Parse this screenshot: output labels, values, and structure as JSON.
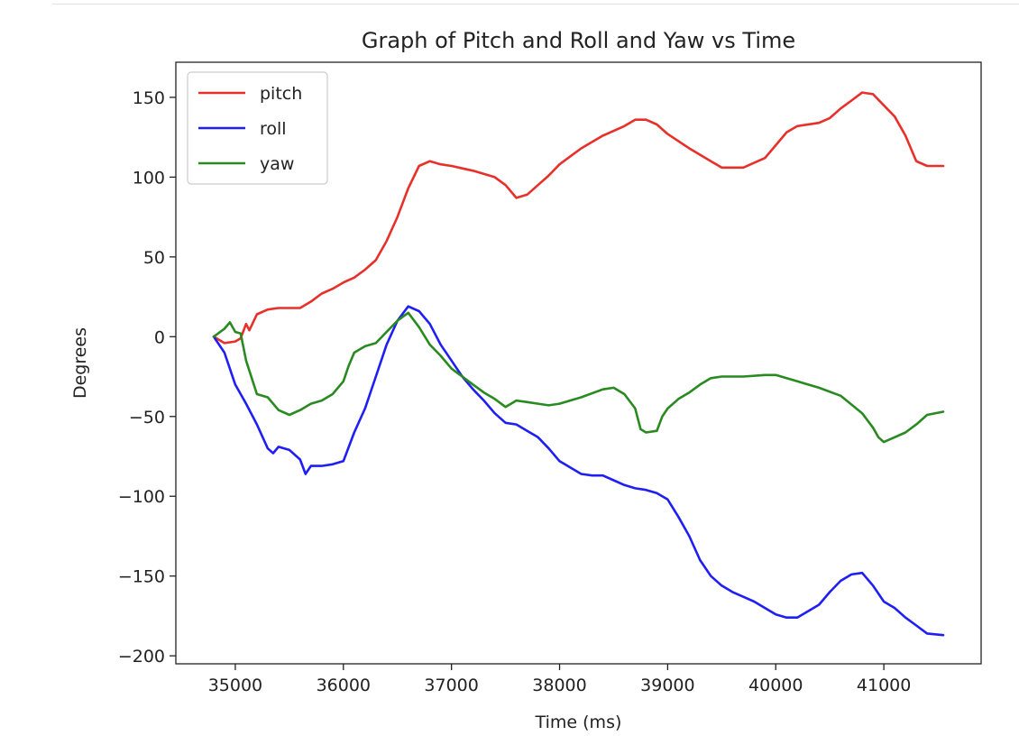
{
  "chart_data": {
    "type": "line",
    "title": "Graph of Pitch and Roll and Yaw vs Time",
    "xlabel": "Time (ms)",
    "ylabel": "Degrees",
    "xlim": [
      34450,
      41900
    ],
    "ylim": [
      -205,
      172
    ],
    "xticks": [
      35000,
      36000,
      37000,
      38000,
      39000,
      40000,
      41000
    ],
    "yticks": [
      -200,
      -150,
      -100,
      -50,
      0,
      50,
      100,
      150
    ],
    "grid": false,
    "legend_position": "upper-left",
    "series": [
      {
        "name": "pitch",
        "color": "#e8302a",
        "points": [
          [
            34800,
            0
          ],
          [
            34900,
            -4
          ],
          [
            35000,
            -3
          ],
          [
            35050,
            -1
          ],
          [
            35100,
            8
          ],
          [
            35130,
            4
          ],
          [
            35200,
            14
          ],
          [
            35300,
            17
          ],
          [
            35400,
            18
          ],
          [
            35500,
            18
          ],
          [
            35600,
            18
          ],
          [
            35700,
            22
          ],
          [
            35800,
            27
          ],
          [
            35900,
            30
          ],
          [
            36000,
            34
          ],
          [
            36100,
            37
          ],
          [
            36200,
            42
          ],
          [
            36300,
            48
          ],
          [
            36400,
            60
          ],
          [
            36500,
            75
          ],
          [
            36600,
            93
          ],
          [
            36700,
            107
          ],
          [
            36800,
            110
          ],
          [
            36900,
            108
          ],
          [
            37000,
            107
          ],
          [
            37200,
            104
          ],
          [
            37400,
            100
          ],
          [
            37500,
            95
          ],
          [
            37600,
            87
          ],
          [
            37700,
            89
          ],
          [
            37800,
            95
          ],
          [
            37900,
            101
          ],
          [
            38000,
            108
          ],
          [
            38200,
            118
          ],
          [
            38400,
            126
          ],
          [
            38600,
            132
          ],
          [
            38700,
            136
          ],
          [
            38800,
            136
          ],
          [
            38900,
            133
          ],
          [
            39000,
            127
          ],
          [
            39200,
            118
          ],
          [
            39400,
            110
          ],
          [
            39500,
            106
          ],
          [
            39700,
            106
          ],
          [
            39900,
            112
          ],
          [
            40000,
            120
          ],
          [
            40100,
            128
          ],
          [
            40200,
            132
          ],
          [
            40400,
            134
          ],
          [
            40500,
            137
          ],
          [
            40600,
            143
          ],
          [
            40700,
            148
          ],
          [
            40800,
            153
          ],
          [
            40900,
            152
          ],
          [
            41000,
            145
          ],
          [
            41100,
            138
          ],
          [
            41200,
            126
          ],
          [
            41300,
            110
          ],
          [
            41400,
            107
          ],
          [
            41550,
            107
          ]
        ]
      },
      {
        "name": "roll",
        "color": "#1f1ff5",
        "points": [
          [
            34800,
            0
          ],
          [
            34900,
            -10
          ],
          [
            35000,
            -30
          ],
          [
            35100,
            -42
          ],
          [
            35200,
            -55
          ],
          [
            35300,
            -70
          ],
          [
            35350,
            -73
          ],
          [
            35400,
            -69
          ],
          [
            35500,
            -71
          ],
          [
            35600,
            -77
          ],
          [
            35650,
            -86
          ],
          [
            35700,
            -81
          ],
          [
            35800,
            -81
          ],
          [
            35900,
            -80
          ],
          [
            36000,
            -78
          ],
          [
            36100,
            -60
          ],
          [
            36200,
            -45
          ],
          [
            36300,
            -25
          ],
          [
            36400,
            -5
          ],
          [
            36500,
            10
          ],
          [
            36600,
            19
          ],
          [
            36700,
            16
          ],
          [
            36800,
            8
          ],
          [
            36900,
            -5
          ],
          [
            37000,
            -15
          ],
          [
            37100,
            -25
          ],
          [
            37200,
            -33
          ],
          [
            37300,
            -40
          ],
          [
            37400,
            -48
          ],
          [
            37500,
            -54
          ],
          [
            37600,
            -55
          ],
          [
            37700,
            -59
          ],
          [
            37800,
            -63
          ],
          [
            37900,
            -70
          ],
          [
            38000,
            -78
          ],
          [
            38100,
            -82
          ],
          [
            38200,
            -86
          ],
          [
            38300,
            -87
          ],
          [
            38400,
            -87
          ],
          [
            38500,
            -90
          ],
          [
            38600,
            -93
          ],
          [
            38700,
            -95
          ],
          [
            38800,
            -96
          ],
          [
            38900,
            -98
          ],
          [
            39000,
            -102
          ],
          [
            39100,
            -113
          ],
          [
            39200,
            -125
          ],
          [
            39300,
            -140
          ],
          [
            39400,
            -150
          ],
          [
            39500,
            -156
          ],
          [
            39600,
            -160
          ],
          [
            39700,
            -163
          ],
          [
            39800,
            -166
          ],
          [
            39900,
            -170
          ],
          [
            40000,
            -174
          ],
          [
            40100,
            -176
          ],
          [
            40200,
            -176
          ],
          [
            40300,
            -172
          ],
          [
            40400,
            -168
          ],
          [
            40500,
            -160
          ],
          [
            40600,
            -153
          ],
          [
            40700,
            -149
          ],
          [
            40800,
            -148
          ],
          [
            40900,
            -156
          ],
          [
            41000,
            -166
          ],
          [
            41100,
            -170
          ],
          [
            41200,
            -176
          ],
          [
            41300,
            -181
          ],
          [
            41400,
            -186
          ],
          [
            41550,
            -187
          ]
        ]
      },
      {
        "name": "yaw",
        "color": "#2a8a22",
        "points": [
          [
            34800,
            0
          ],
          [
            34900,
            5
          ],
          [
            34950,
            9
          ],
          [
            35000,
            3
          ],
          [
            35050,
            2
          ],
          [
            35100,
            -15
          ],
          [
            35200,
            -36
          ],
          [
            35300,
            -38
          ],
          [
            35400,
            -46
          ],
          [
            35500,
            -49
          ],
          [
            35600,
            -46
          ],
          [
            35700,
            -42
          ],
          [
            35800,
            -40
          ],
          [
            35900,
            -36
          ],
          [
            36000,
            -28
          ],
          [
            36050,
            -18
          ],
          [
            36100,
            -10
          ],
          [
            36200,
            -6
          ],
          [
            36300,
            -4
          ],
          [
            36400,
            3
          ],
          [
            36500,
            10
          ],
          [
            36600,
            15
          ],
          [
            36700,
            6
          ],
          [
            36800,
            -5
          ],
          [
            36900,
            -12
          ],
          [
            37000,
            -20
          ],
          [
            37100,
            -25
          ],
          [
            37200,
            -30
          ],
          [
            37300,
            -35
          ],
          [
            37400,
            -39
          ],
          [
            37500,
            -44
          ],
          [
            37600,
            -40
          ],
          [
            37700,
            -41
          ],
          [
            37800,
            -42
          ],
          [
            37900,
            -43
          ],
          [
            38000,
            -42
          ],
          [
            38200,
            -38
          ],
          [
            38400,
            -33
          ],
          [
            38500,
            -32
          ],
          [
            38600,
            -36
          ],
          [
            38700,
            -45
          ],
          [
            38750,
            -58
          ],
          [
            38800,
            -60
          ],
          [
            38900,
            -59
          ],
          [
            38950,
            -50
          ],
          [
            39000,
            -45
          ],
          [
            39100,
            -39
          ],
          [
            39200,
            -35
          ],
          [
            39300,
            -30
          ],
          [
            39400,
            -26
          ],
          [
            39500,
            -25
          ],
          [
            39700,
            -25
          ],
          [
            39900,
            -24
          ],
          [
            40000,
            -24
          ],
          [
            40200,
            -28
          ],
          [
            40400,
            -32
          ],
          [
            40600,
            -37
          ],
          [
            40800,
            -48
          ],
          [
            40900,
            -57
          ],
          [
            40950,
            -63
          ],
          [
            41000,
            -66
          ],
          [
            41100,
            -63
          ],
          [
            41200,
            -60
          ],
          [
            41300,
            -55
          ],
          [
            41400,
            -49
          ],
          [
            41550,
            -47
          ]
        ]
      }
    ]
  }
}
